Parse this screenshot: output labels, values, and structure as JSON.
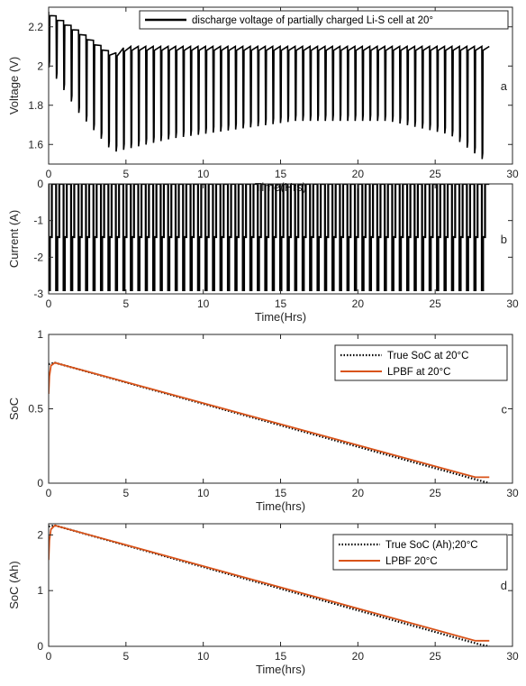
{
  "colors": {
    "axis": "#262626",
    "black": "#000000",
    "orange": "#D95319",
    "background": "#ffffff"
  },
  "chart_data": [
    {
      "type": "line",
      "panel_label": "a",
      "xlabel": "Time(Hrs)",
      "ylabel": "Voltage (V)",
      "xlim": [
        0,
        30
      ],
      "ylim": [
        1.5,
        2.3
      ],
      "xticks": [
        "0",
        "5",
        "10",
        "15",
        "20",
        "25",
        "30"
      ],
      "yticks": [
        "1.6",
        "1.8",
        "2",
        "2.2"
      ],
      "legend": [
        "discharge voltage of partially charged Li-S cell at 20°"
      ],
      "legend_position": "top-right",
      "series": [
        {
          "name": "discharge voltage of partially charged Li-S cell at 20°",
          "color": "#000000",
          "pulse_count": 59,
          "t_end": 28.5,
          "rest_voltage": [
            [
              0,
              2.28
            ],
            [
              2,
              2.18
            ],
            [
              4.2,
              2.06
            ],
            [
              5,
              2.1
            ],
            [
              28.5,
              2.1
            ]
          ],
          "pulse_min_voltage": [
            [
              0,
              2.0
            ],
            [
              2,
              1.76
            ],
            [
              4.2,
              1.56
            ],
            [
              8,
              1.63
            ],
            [
              16,
              1.72
            ],
            [
              22,
              1.72
            ],
            [
              26,
              1.65
            ],
            [
              28.5,
              1.5
            ]
          ]
        }
      ]
    },
    {
      "type": "line",
      "panel_label": "b",
      "xlabel": "Time(Hrs)",
      "ylabel": "Current (A)",
      "xlim": [
        0,
        30
      ],
      "ylim": [
        -3,
        0
      ],
      "xticks": [
        "0",
        "5",
        "10",
        "15",
        "20",
        "25",
        "30"
      ],
      "yticks": [
        "-3",
        "-2",
        "-1",
        "0"
      ],
      "series": [
        {
          "name": "",
          "color": "#000000",
          "pulse_count": 59,
          "t_end": 28.5,
          "rest_current": 0,
          "pulse_high_current": -1.45,
          "pulse_low_current": -2.9
        }
      ]
    },
    {
      "type": "line",
      "panel_label": "c",
      "xlabel": "Time(hrs)",
      "ylabel": "SoC",
      "xlim": [
        0,
        30
      ],
      "ylim": [
        0,
        1
      ],
      "xticks": [
        "0",
        "5",
        "10",
        "15",
        "20",
        "25",
        "30"
      ],
      "yticks": [
        "0",
        "0.5",
        "1"
      ],
      "legend": [
        "True SoC at 20°C",
        "LPBF at 20°C"
      ],
      "legend_position": "top-right",
      "series": [
        {
          "name": "True SoC at 20°C",
          "color": "#000000",
          "style": "dotted",
          "x": [
            0,
            0.4,
            27.8,
            28.5
          ],
          "y": [
            0.8,
            0.81,
            0.02,
            0.0
          ]
        },
        {
          "name": "LPBF at 20°C",
          "color": "#D95319",
          "style": "solid",
          "x": [
            0,
            0.05,
            0.15,
            0.4,
            27.6,
            28.5
          ],
          "y": [
            0.6,
            0.72,
            0.79,
            0.81,
            0.04,
            0.04
          ]
        }
      ]
    },
    {
      "type": "line",
      "panel_label": "d",
      "xlabel": "Time(hrs)",
      "ylabel": "SoC (Ah)",
      "xlim": [
        0,
        30
      ],
      "ylim": [
        0,
        2.2
      ],
      "xticks": [
        "0",
        "5",
        "10",
        "15",
        "20",
        "25",
        "30"
      ],
      "yticks": [
        "0",
        "1",
        "2"
      ],
      "legend": [
        "True SoC (Ah);20°C",
        "LPBF 20°C"
      ],
      "legend_position": "top-right",
      "series": [
        {
          "name": "True SoC (Ah);20°C",
          "color": "#000000",
          "style": "dotted",
          "x": [
            0,
            0.4,
            27.8,
            28.5
          ],
          "y": [
            2.15,
            2.17,
            0.04,
            0.0
          ]
        },
        {
          "name": "LPBF 20°C",
          "color": "#D95319",
          "style": "solid",
          "x": [
            0,
            0.05,
            0.15,
            0.4,
            27.6,
            28.5
          ],
          "y": [
            1.55,
            1.9,
            2.1,
            2.17,
            0.1,
            0.1
          ]
        }
      ]
    }
  ]
}
